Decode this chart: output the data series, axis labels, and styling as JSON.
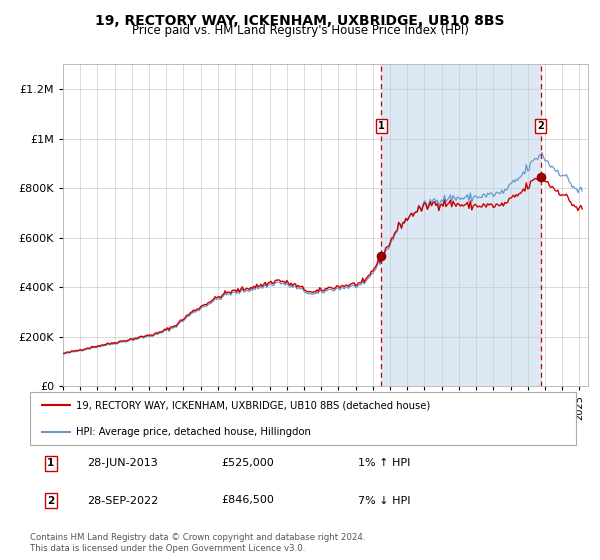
{
  "title": "19, RECTORY WAY, ICKENHAM, UXBRIDGE, UB10 8BS",
  "subtitle": "Price paid vs. HM Land Registry's House Price Index (HPI)",
  "sale1_date": "28-JUN-2013",
  "sale1_price": 525000,
  "sale1_label": "1",
  "sale1_hpi_change": "1% ↑ HPI",
  "sale2_date": "28-SEP-2022",
  "sale2_price": 846500,
  "sale2_label": "2",
  "sale2_hpi_change": "7% ↓ HPI",
  "legend_line1": "19, RECTORY WAY, ICKENHAM, UXBRIDGE, UB10 8BS (detached house)",
  "legend_line2": "HPI: Average price, detached house, Hillingdon",
  "footer": "Contains HM Land Registry data © Crown copyright and database right 2024.\nThis data is licensed under the Open Government Licence v3.0.",
  "hpi_line_color": "#6699cc",
  "price_line_color": "#cc0000",
  "marker_color": "#990000",
  "dashed_line_color": "#cc0000",
  "shaded_fill_color": "#dce9f5",
  "background_color": "#ffffff",
  "grid_color": "#cccccc",
  "ylim": [
    0,
    1300000
  ],
  "yticks": [
    0,
    200000,
    400000,
    600000,
    800000,
    1000000,
    1200000
  ],
  "ytick_labels": [
    "£0",
    "£200K",
    "£400K",
    "£600K",
    "£800K",
    "£1M",
    "£1.2M"
  ],
  "xlim_start": 1995,
  "xlim_end": 2025.5
}
